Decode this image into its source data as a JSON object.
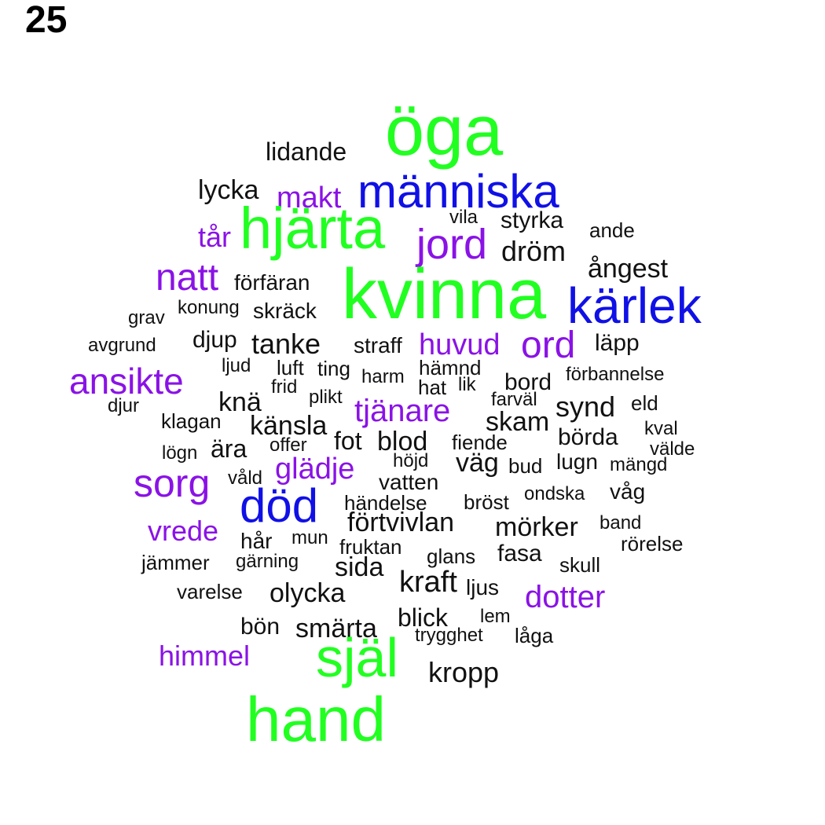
{
  "panel_number": "25",
  "colors": {
    "green": "#21ff21",
    "blue": "#1010e6",
    "purple": "#8a12e6",
    "black": "#111111"
  },
  "words": [
    {
      "text": "öga",
      "color": "green"
    },
    {
      "text": "lidande",
      "color": "black"
    },
    {
      "text": "lycka",
      "color": "black"
    },
    {
      "text": "makt",
      "color": "purple"
    },
    {
      "text": "människa",
      "color": "blue"
    },
    {
      "text": "vila",
      "color": "black"
    },
    {
      "text": "styrka",
      "color": "black"
    },
    {
      "text": "ande",
      "color": "black"
    },
    {
      "text": "tår",
      "color": "purple"
    },
    {
      "text": "hjärta",
      "color": "green"
    },
    {
      "text": "jord",
      "color": "purple"
    },
    {
      "text": "dröm",
      "color": "black"
    },
    {
      "text": "ångest",
      "color": "black"
    },
    {
      "text": "natt",
      "color": "purple"
    },
    {
      "text": "förfäran",
      "color": "black"
    },
    {
      "text": "kvinna",
      "color": "green"
    },
    {
      "text": "kärlek",
      "color": "blue"
    },
    {
      "text": "grav",
      "color": "black"
    },
    {
      "text": "konung",
      "color": "black"
    },
    {
      "text": "skräck",
      "color": "black"
    },
    {
      "text": "avgrund",
      "color": "black"
    },
    {
      "text": "djup",
      "color": "black"
    },
    {
      "text": "tanke",
      "color": "black"
    },
    {
      "text": "straff",
      "color": "black"
    },
    {
      "text": "huvud",
      "color": "purple"
    },
    {
      "text": "ord",
      "color": "purple"
    },
    {
      "text": "läpp",
      "color": "black"
    },
    {
      "text": "ljud",
      "color": "black"
    },
    {
      "text": "luft",
      "color": "black"
    },
    {
      "text": "ting",
      "color": "black"
    },
    {
      "text": "hämnd",
      "color": "black"
    },
    {
      "text": "ansikte",
      "color": "purple"
    },
    {
      "text": "harm",
      "color": "black"
    },
    {
      "text": "frid",
      "color": "black"
    },
    {
      "text": "hat",
      "color": "black"
    },
    {
      "text": "lik",
      "color": "black"
    },
    {
      "text": "bord",
      "color": "black"
    },
    {
      "text": "förbannelse",
      "color": "black"
    },
    {
      "text": "plikt",
      "color": "black"
    },
    {
      "text": "farväl",
      "color": "black"
    },
    {
      "text": "djur",
      "color": "black"
    },
    {
      "text": "knä",
      "color": "black"
    },
    {
      "text": "tjänare",
      "color": "purple"
    },
    {
      "text": "synd",
      "color": "black"
    },
    {
      "text": "eld",
      "color": "black"
    },
    {
      "text": "klagan",
      "color": "black"
    },
    {
      "text": "känsla",
      "color": "black"
    },
    {
      "text": "skam",
      "color": "black"
    },
    {
      "text": "kval",
      "color": "black"
    },
    {
      "text": "fot",
      "color": "black"
    },
    {
      "text": "blod",
      "color": "black"
    },
    {
      "text": "fiende",
      "color": "black"
    },
    {
      "text": "börda",
      "color": "black"
    },
    {
      "text": "lögn",
      "color": "black"
    },
    {
      "text": "ära",
      "color": "black"
    },
    {
      "text": "offer",
      "color": "black"
    },
    {
      "text": "välde",
      "color": "black"
    },
    {
      "text": "höjd",
      "color": "black"
    },
    {
      "text": "väg",
      "color": "black"
    },
    {
      "text": "lugn",
      "color": "black"
    },
    {
      "text": "glädje",
      "color": "purple"
    },
    {
      "text": "bud",
      "color": "black"
    },
    {
      "text": "mängd",
      "color": "black"
    },
    {
      "text": "sorg",
      "color": "purple"
    },
    {
      "text": "våld",
      "color": "black"
    },
    {
      "text": "vatten",
      "color": "black"
    },
    {
      "text": "våg",
      "color": "black"
    },
    {
      "text": "ondska",
      "color": "black"
    },
    {
      "text": "händelse",
      "color": "black"
    },
    {
      "text": "bröst",
      "color": "black"
    },
    {
      "text": "död",
      "color": "blue"
    },
    {
      "text": "förtvivlan",
      "color": "black"
    },
    {
      "text": "band",
      "color": "black"
    },
    {
      "text": "vrede",
      "color": "purple"
    },
    {
      "text": "mörker",
      "color": "black"
    },
    {
      "text": "hår",
      "color": "black"
    },
    {
      "text": "mun",
      "color": "black"
    },
    {
      "text": "rörelse",
      "color": "black"
    },
    {
      "text": "fruktan",
      "color": "black"
    },
    {
      "text": "fasa",
      "color": "black"
    },
    {
      "text": "jämmer",
      "color": "black"
    },
    {
      "text": "gärning",
      "color": "black"
    },
    {
      "text": "glans",
      "color": "black"
    },
    {
      "text": "skull",
      "color": "black"
    },
    {
      "text": "sida",
      "color": "black"
    },
    {
      "text": "kraft",
      "color": "black"
    },
    {
      "text": "ljus",
      "color": "black"
    },
    {
      "text": "varelse",
      "color": "black"
    },
    {
      "text": "olycka",
      "color": "black"
    },
    {
      "text": "dotter",
      "color": "purple"
    },
    {
      "text": "blick",
      "color": "black"
    },
    {
      "text": "lem",
      "color": "black"
    },
    {
      "text": "bön",
      "color": "black"
    },
    {
      "text": "smärta",
      "color": "black"
    },
    {
      "text": "trygghet",
      "color": "black"
    },
    {
      "text": "låga",
      "color": "black"
    },
    {
      "text": "himmel",
      "color": "purple"
    },
    {
      "text": "själ",
      "color": "green"
    },
    {
      "text": "kropp",
      "color": "black"
    },
    {
      "text": "hand",
      "color": "green"
    }
  ]
}
